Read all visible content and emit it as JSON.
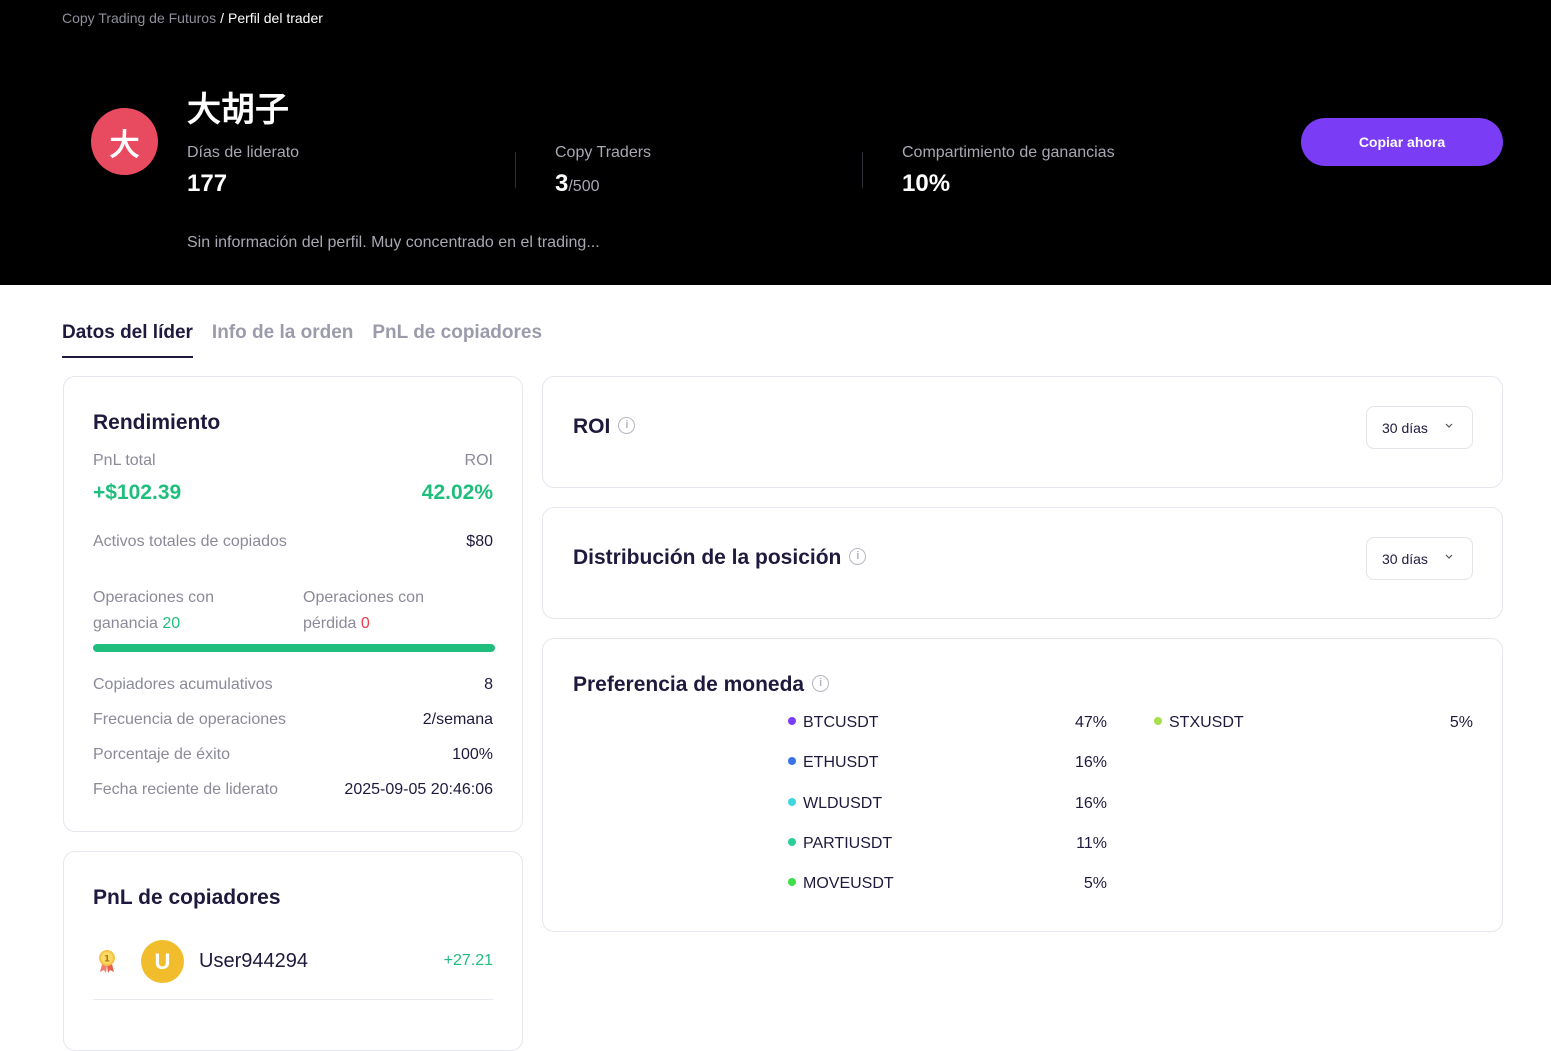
{
  "breadcrumb": {
    "parent": "Copy Trading de Futuros",
    "separator": "/",
    "current": "Perfil del trader"
  },
  "trader": {
    "avatar_letter": "大",
    "name": "大胡子",
    "bio": "Sin información del perfil. Muy concentrado en el trading...",
    "stats": {
      "days_label": "Días de liderato",
      "days_value": "177",
      "copy_label": "Copy Traders",
      "copy_value": "3",
      "copy_max": "/500",
      "share_label": "Compartimiento de ganancias",
      "share_value": "10%"
    },
    "copy_button": "Copiar ahora"
  },
  "tabs": [
    {
      "label": "Datos del líder",
      "active": true
    },
    {
      "label": "Info de la orden",
      "active": false
    },
    {
      "label": "PnL de copiadores",
      "active": false
    }
  ],
  "performance": {
    "title": "Rendimiento",
    "pnl_label": "PnL total",
    "pnl_value": "+$102.39",
    "roi_label": "ROI",
    "roi_value": "42.02%",
    "assets_label": "Activos totales de copiados",
    "assets_value": "$80",
    "win_label_1": "Operaciones con",
    "win_label_2": "ganancia",
    "win_value": "20",
    "loss_label_1": "Operaciones con",
    "loss_label_2": "pérdida",
    "loss_value": "0",
    "win_ratio": 1.0,
    "rows": [
      {
        "label": "Copiadores acumulativos",
        "value": "8"
      },
      {
        "label": "Frecuencia de operaciones",
        "value": "2/semana"
      },
      {
        "label": "Porcentaje de éxito",
        "value": "100%"
      },
      {
        "label": "Fecha reciente de liderato",
        "value": "2025-09-05 20:46:06"
      }
    ]
  },
  "copier_pnl": {
    "title": "PnL de copiadores",
    "users": [
      {
        "rank": "1",
        "avatar_letter": "U",
        "name": "User944294",
        "value": "+27.21"
      }
    ]
  },
  "roi_panel": {
    "title": "ROI",
    "period": "30 días"
  },
  "distribution_panel": {
    "title": "Distribución de la posición",
    "period": "30 días"
  },
  "coin_preference": {
    "title": "Preferencia de moneda",
    "coins": [
      {
        "name": "BTCUSDT",
        "pct": "47%",
        "color": "#7b3cf5"
      },
      {
        "name": "ETHUSDT",
        "pct": "16%",
        "color": "#3b73e8"
      },
      {
        "name": "WLDUSDT",
        "pct": "16%",
        "color": "#3fd6e0"
      },
      {
        "name": "PARTIUSDT",
        "pct": "11%",
        "color": "#2ccf9a"
      },
      {
        "name": "MOVEUSDT",
        "pct": "5%",
        "color": "#3fde4a"
      },
      {
        "name": "STXUSDT",
        "pct": "5%",
        "color": "#a6e04a"
      }
    ]
  },
  "colors": {
    "accent": "#7b3cf5",
    "positive": "#1fbe7c",
    "negative": "#ef3a4c",
    "avatar": "#e84a5f"
  }
}
